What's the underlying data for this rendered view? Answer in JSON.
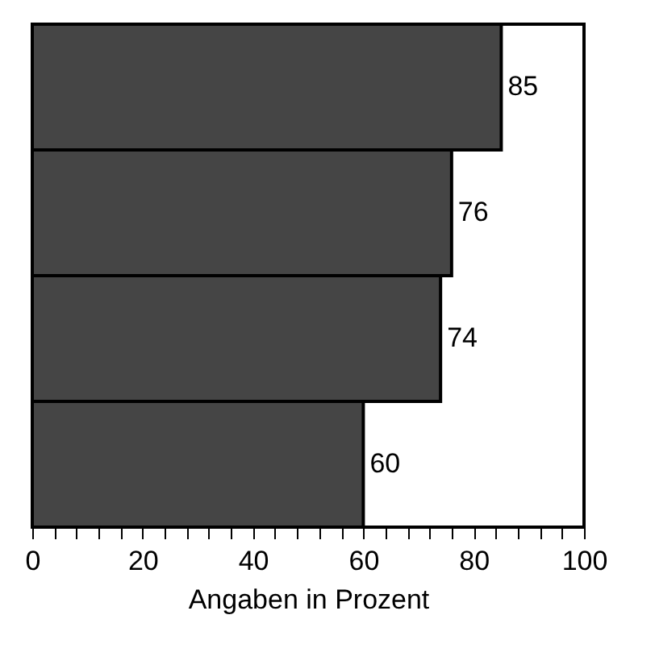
{
  "chart_data": {
    "type": "bar",
    "orientation": "horizontal",
    "xlabel": "Angaben in Prozent",
    "categories": [
      null,
      null,
      null,
      null
    ],
    "values": [
      85,
      76,
      74,
      60
    ],
    "color": "#454545",
    "data_labels": true,
    "xlim": [
      0,
      100
    ],
    "xticks": [
      0,
      {
        "value": 4,
        "label": null
      },
      {
        "value": 8,
        "label": null
      },
      {
        "value": 12,
        "label": null
      },
      {
        "value": 16,
        "label": null
      },
      20,
      {
        "value": 24,
        "label": null
      },
      {
        "value": 28,
        "label": null
      },
      {
        "value": 32,
        "label": null
      },
      {
        "value": 36,
        "label": null
      },
      40,
      {
        "value": 44,
        "label": null
      },
      {
        "value": 48,
        "label": null
      },
      {
        "value": 52,
        "label": null
      },
      {
        "value": 56,
        "label": null
      },
      60,
      {
        "value": 64,
        "label": null
      },
      {
        "value": 68,
        "label": null
      },
      {
        "value": 72,
        "label": null
      },
      {
        "value": 76,
        "label": null
      },
      80,
      {
        "value": 84,
        "label": null
      },
      {
        "value": 88,
        "label": null
      },
      {
        "value": 92,
        "label": null
      },
      {
        "value": 96,
        "label": null
      },
      100
    ],
    "tick_labels": "x",
    "grid": false
  }
}
